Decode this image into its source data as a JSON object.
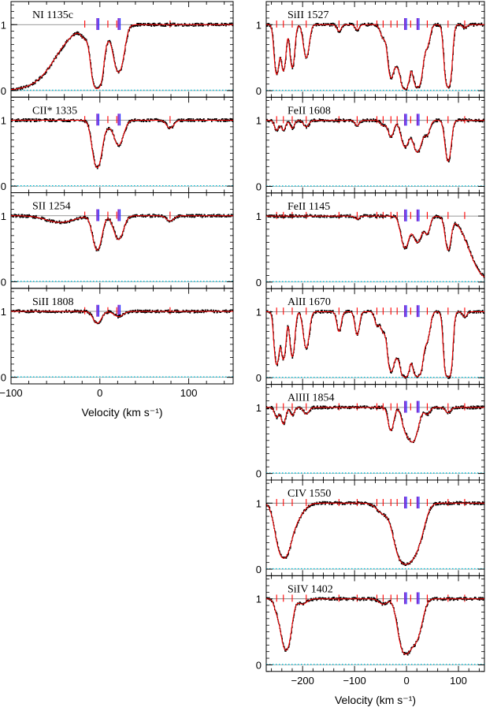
{
  "colors": {
    "spectrum": "#000000",
    "model": "#ff0000",
    "tick_mark": "#ff0000",
    "tick_mark_strong": "#7a2fd6",
    "tick_mark_blue": "#2b2bff",
    "zero_level": "#00bcd4",
    "continuum": "#000000"
  },
  "chart_data": [
    {
      "type": "line",
      "column": "left",
      "xlim": [
        -100,
        150
      ],
      "ylim": [
        -0.1,
        1.35
      ],
      "xticks": [
        -100,
        0,
        100
      ],
      "yticks": [
        0,
        1
      ],
      "xlabel": "Velocity (km s⁻¹)",
      "component_marks": [
        -17,
        -3,
        9,
        19,
        79
      ],
      "strong_marks": [
        -3,
        21
      ],
      "panels": [
        {
          "label": "NI 1135c",
          "components": [
            {
              "v": -3,
              "depth": 0.97,
              "width": 4.5
            },
            {
              "v": 21,
              "depth": 0.72,
              "width": 5
            },
            {
              "v": -17,
              "depth": 0.15,
              "width": 4
            },
            {
              "v": 9,
              "depth": 0.12,
              "width": 3
            }
          ],
          "edge": {
            "v": -50,
            "width": 12,
            "side": "left"
          }
        },
        {
          "label": "CII* 1335",
          "components": [
            {
              "v": -3,
              "depth": 0.72,
              "width": 4.5
            },
            {
              "v": 21,
              "depth": 0.38,
              "width": 5
            },
            {
              "v": 79,
              "depth": 0.12,
              "width": 4
            },
            {
              "v": 9,
              "depth": 0.08,
              "width": 3
            }
          ]
        },
        {
          "label": "SII 1254",
          "components": [
            {
              "v": -3,
              "depth": 0.52,
              "width": 4.5
            },
            {
              "v": 21,
              "depth": 0.36,
              "width": 5
            },
            {
              "v": 79,
              "depth": 0.08,
              "width": 4
            },
            {
              "v": -45,
              "depth": 0.1,
              "width": 15
            }
          ]
        },
        {
          "label": "SiII 1808",
          "components": [
            {
              "v": -3,
              "depth": 0.18,
              "width": 4.5
            },
            {
              "v": 21,
              "depth": 0.08,
              "width": 5
            }
          ]
        }
      ]
    },
    {
      "type": "line",
      "column": "right",
      "xlim": [
        -270,
        150
      ],
      "ylim": [
        -0.1,
        1.35
      ],
      "xticks": [
        -200,
        -100,
        0,
        100
      ],
      "yticks": [
        0,
        1
      ],
      "xlabel": "Velocity (km s⁻¹)",
      "component_marks": [
        -250,
        -237,
        -220,
        -193,
        -130,
        -95,
        -57,
        -45,
        -30,
        -18,
        8,
        40,
        80,
        112
      ],
      "strong_marks": [
        -3,
        21
      ],
      "panels": [
        {
          "label": "SiII 1527",
          "components": [
            {
              "v": -250,
              "depth": 0.75,
              "width": 4
            },
            {
              "v": -237,
              "depth": 0.7,
              "width": 4
            },
            {
              "v": -220,
              "depth": 0.65,
              "width": 4
            },
            {
              "v": -193,
              "depth": 0.5,
              "width": 5
            },
            {
              "v": -130,
              "depth": 0.1,
              "width": 4
            },
            {
              "v": -95,
              "depth": 0.08,
              "width": 4
            },
            {
              "v": -45,
              "depth": 0.2,
              "width": 5
            },
            {
              "v": -30,
              "depth": 0.8,
              "width": 5
            },
            {
              "v": -18,
              "depth": 0.55,
              "width": 5
            },
            {
              "v": -3,
              "depth": 0.98,
              "width": 6
            },
            {
              "v": 21,
              "depth": 0.95,
              "width": 7
            },
            {
              "v": 40,
              "depth": 0.3,
              "width": 5
            },
            {
              "v": 80,
              "depth": 0.95,
              "width": 5
            },
            {
              "v": 112,
              "depth": 0.05,
              "width": 4
            }
          ]
        },
        {
          "label": "FeII 1608",
          "components": [
            {
              "v": -250,
              "depth": 0.15,
              "width": 4
            },
            {
              "v": -237,
              "depth": 0.15,
              "width": 4
            },
            {
              "v": -220,
              "depth": 0.12,
              "width": 4
            },
            {
              "v": -193,
              "depth": 0.1,
              "width": 5
            },
            {
              "v": -95,
              "depth": 0.08,
              "width": 4
            },
            {
              "v": -45,
              "depth": 0.08,
              "width": 5
            },
            {
              "v": -30,
              "depth": 0.25,
              "width": 5
            },
            {
              "v": -3,
              "depth": 0.4,
              "width": 7
            },
            {
              "v": 21,
              "depth": 0.48,
              "width": 8
            },
            {
              "v": 40,
              "depth": 0.2,
              "width": 5
            },
            {
              "v": 80,
              "depth": 0.62,
              "width": 5
            }
          ]
        },
        {
          "label": "FeII 1145",
          "components": [
            {
              "v": -3,
              "depth": 0.48,
              "width": 7
            },
            {
              "v": 21,
              "depth": 0.4,
              "width": 8
            },
            {
              "v": 40,
              "depth": 0.25,
              "width": 5
            },
            {
              "v": 80,
              "depth": 0.5,
              "width": 5
            },
            {
              "v": -95,
              "depth": 0.05,
              "width": 4
            }
          ],
          "edge": {
            "v": 120,
            "width": 12,
            "side": "right"
          }
        },
        {
          "label": "AlII 1670",
          "components": [
            {
              "v": -250,
              "depth": 0.8,
              "width": 4
            },
            {
              "v": -237,
              "depth": 0.72,
              "width": 4
            },
            {
              "v": -220,
              "depth": 0.68,
              "width": 4
            },
            {
              "v": -193,
              "depth": 0.55,
              "width": 5
            },
            {
              "v": -130,
              "depth": 0.3,
              "width": 4
            },
            {
              "v": -95,
              "depth": 0.35,
              "width": 4
            },
            {
              "v": -57,
              "depth": 0.2,
              "width": 4
            },
            {
              "v": -45,
              "depth": 0.3,
              "width": 5
            },
            {
              "v": -30,
              "depth": 0.9,
              "width": 5
            },
            {
              "v": -18,
              "depth": 0.6,
              "width": 5
            },
            {
              "v": -3,
              "depth": 0.99,
              "width": 6
            },
            {
              "v": 21,
              "depth": 0.98,
              "width": 7
            },
            {
              "v": 40,
              "depth": 0.4,
              "width": 5
            },
            {
              "v": 80,
              "depth": 0.99,
              "width": 5
            },
            {
              "v": 112,
              "depth": 0.08,
              "width": 4
            }
          ]
        },
        {
          "label": "AlIII 1854",
          "components": [
            {
              "v": -250,
              "depth": 0.15,
              "width": 4
            },
            {
              "v": -237,
              "depth": 0.25,
              "width": 4
            },
            {
              "v": -220,
              "depth": 0.12,
              "width": 4
            },
            {
              "v": -193,
              "depth": 0.1,
              "width": 5
            },
            {
              "v": -30,
              "depth": 0.35,
              "width": 5
            },
            {
              "v": -3,
              "depth": 0.25,
              "width": 6
            },
            {
              "v": 12,
              "depth": 0.52,
              "width": 9
            },
            {
              "v": 40,
              "depth": 0.1,
              "width": 5
            },
            {
              "v": 80,
              "depth": 0.08,
              "width": 5
            }
          ]
        },
        {
          "label": "CIV 1550",
          "components": [
            {
              "v": -237,
              "depth": 0.82,
              "width": 11
            },
            {
              "v": -215,
              "depth": 0.25,
              "width": 14
            },
            {
              "v": -45,
              "depth": 0.15,
              "width": 12
            },
            {
              "v": -3,
              "depth": 0.92,
              "width": 14
            },
            {
              "v": 21,
              "depth": 0.5,
              "width": 12
            }
          ]
        },
        {
          "label": "SiIV 1402",
          "components": [
            {
              "v": -250,
              "depth": 0.15,
              "width": 5
            },
            {
              "v": -232,
              "depth": 0.78,
              "width": 8
            },
            {
              "v": -200,
              "depth": 0.08,
              "width": 8
            },
            {
              "v": -45,
              "depth": 0.08,
              "width": 8
            },
            {
              "v": -3,
              "depth": 0.82,
              "width": 10
            },
            {
              "v": 18,
              "depth": 0.6,
              "width": 10
            }
          ]
        }
      ]
    }
  ]
}
